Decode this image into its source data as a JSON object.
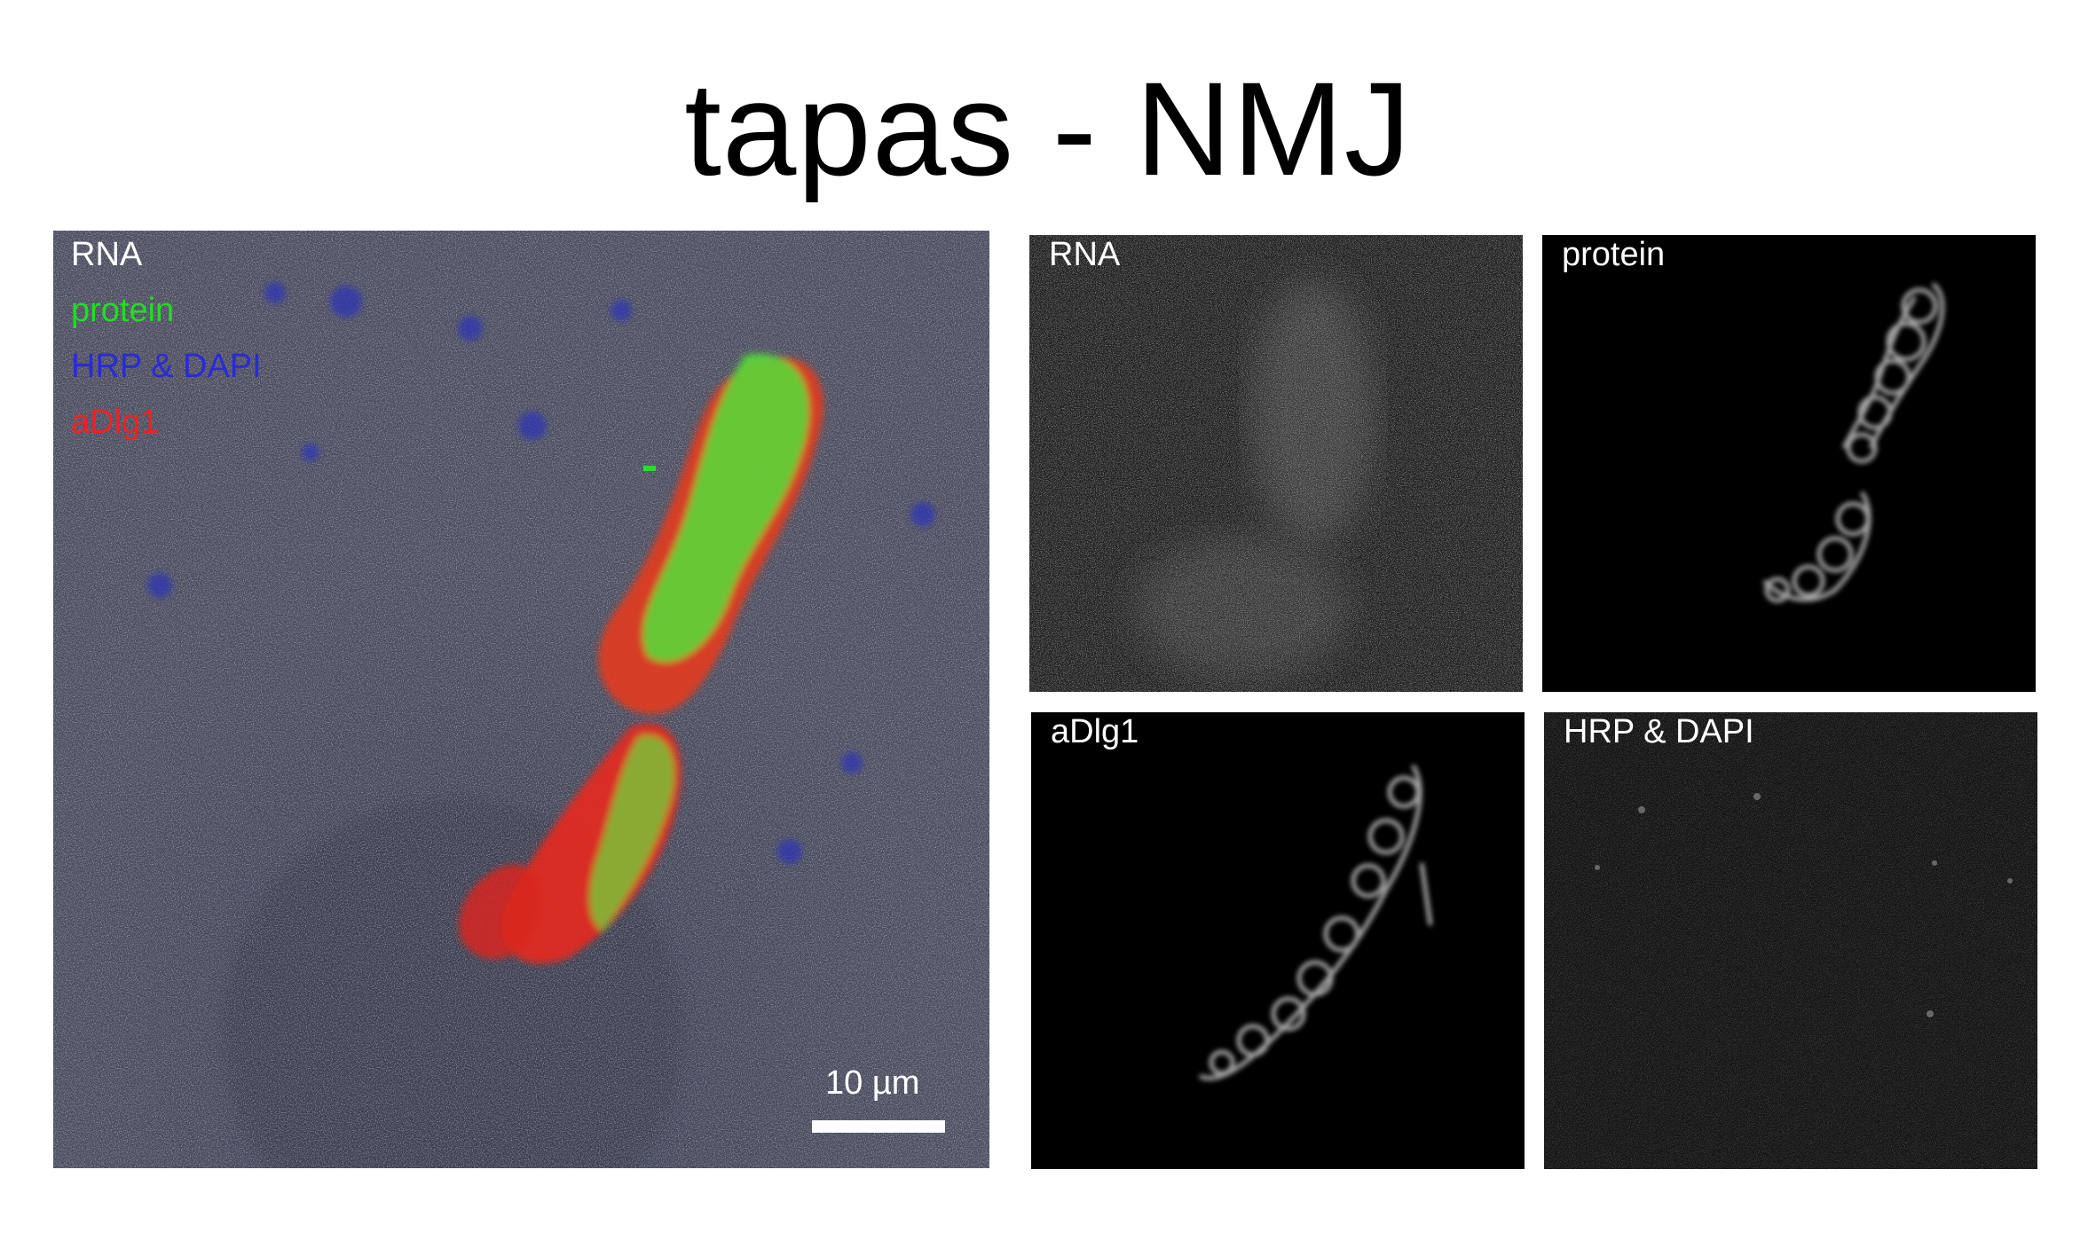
{
  "figure": {
    "title": "tapas - NMJ"
  },
  "merge_panel": {
    "legend": [
      {
        "text": "RNA",
        "color": "#ffffff"
      },
      {
        "text": "protein",
        "color": "#22dd22"
      },
      {
        "text": "HRP & DAPI",
        "color": "#2a2ad8"
      },
      {
        "text": "aDlg1",
        "color": "#ee2222"
      }
    ],
    "scale_bar_label": "10 µm"
  },
  "channel_panels": {
    "rna": {
      "label": "RNA"
    },
    "protein": {
      "label": "protein"
    },
    "adlg1": {
      "label": "aDlg1"
    },
    "hrp_dapi": {
      "label": "HRP & DAPI"
    }
  }
}
